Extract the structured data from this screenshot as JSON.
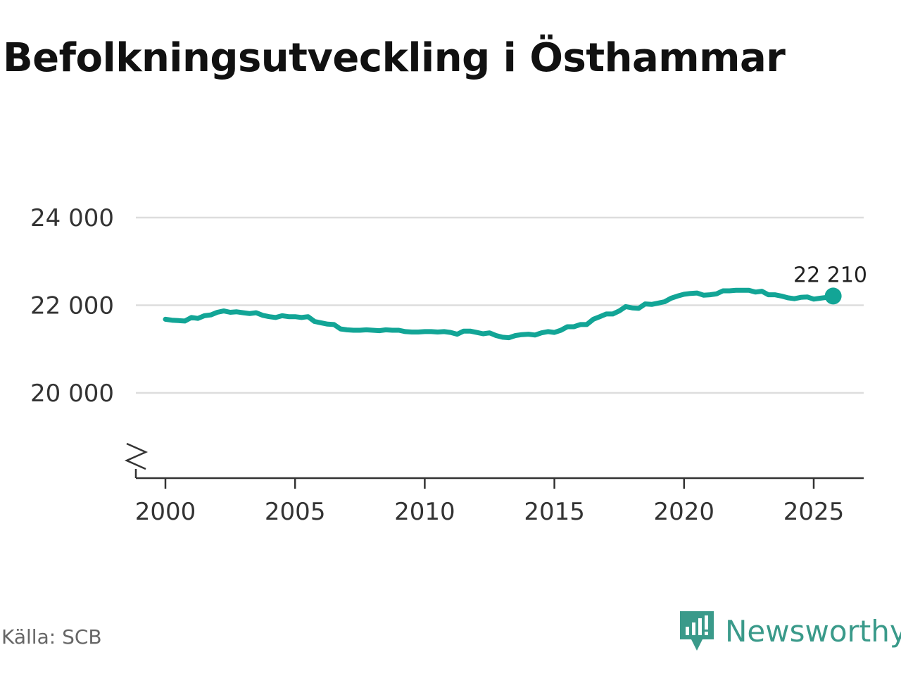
{
  "chart_data": {
    "type": "line",
    "title": "Befolkningsutveckling i Östhammar",
    "xlabel": "",
    "ylabel": "",
    "ylim": [
      18000,
      25000
    ],
    "xlim": [
      1999,
      2027
    ],
    "y_ticks": [
      20000,
      22000,
      24000
    ],
    "y_tick_labels": [
      "20 000",
      "22 000",
      "24 000"
    ],
    "x_ticks": [
      2000,
      2005,
      2010,
      2015,
      2020,
      2025
    ],
    "x_tick_labels": [
      "2000",
      "2005",
      "2010",
      "2015",
      "2020",
      "2025"
    ],
    "grid": true,
    "axis_break": true,
    "line_color": "#12a596",
    "series": [
      {
        "x": [
          2000.0,
          2000.25,
          2000.5,
          2000.75,
          2001.0,
          2001.25,
          2001.5,
          2001.75,
          2002.0,
          2002.25,
          2002.5,
          2002.75,
          2003.0,
          2003.25,
          2003.5,
          2003.75,
          2004.0,
          2004.25,
          2004.5,
          2004.75,
          2005.0,
          2005.25,
          2005.5,
          2005.75,
          2006.0,
          2006.25,
          2006.5,
          2006.75,
          2007.0,
          2007.25,
          2007.5,
          2007.75,
          2008.0,
          2008.25,
          2008.5,
          2008.75,
          2009.0,
          2009.25,
          2009.5,
          2009.75,
          2010.0,
          2010.25,
          2010.5,
          2010.75,
          2011.0,
          2011.25,
          2011.5,
          2011.75,
          2012.0,
          2012.25,
          2012.5,
          2012.75,
          2013.0,
          2013.25,
          2013.5,
          2013.75,
          2014.0,
          2014.25,
          2014.5,
          2014.75,
          2015.0,
          2015.25,
          2015.5,
          2015.75,
          2016.0,
          2016.25,
          2016.5,
          2016.75,
          2017.0,
          2017.25,
          2017.5,
          2017.75,
          2018.0,
          2018.25,
          2018.5,
          2018.75,
          2019.0,
          2019.25,
          2019.5,
          2019.75,
          2020.0,
          2020.25,
          2020.5,
          2020.75,
          2021.0,
          2021.25,
          2021.5,
          2021.75,
          2022.0,
          2022.25,
          2022.5,
          2022.75,
          2023.0,
          2023.25,
          2023.5,
          2023.75,
          2024.0,
          2024.25,
          2024.5,
          2024.75,
          2025.0,
          2025.25,
          2025.5,
          2025.75
        ],
        "values": [
          21680,
          21660,
          21650,
          21640,
          21720,
          21700,
          21760,
          21780,
          21840,
          21870,
          21840,
          21850,
          21830,
          21810,
          21830,
          21770,
          21740,
          21720,
          21760,
          21740,
          21740,
          21720,
          21740,
          21630,
          21600,
          21570,
          21560,
          21460,
          21440,
          21430,
          21430,
          21440,
          21430,
          21420,
          21440,
          21430,
          21430,
          21400,
          21390,
          21390,
          21400,
          21400,
          21390,
          21400,
          21380,
          21340,
          21410,
          21410,
          21380,
          21350,
          21370,
          21310,
          21270,
          21260,
          21310,
          21330,
          21340,
          21320,
          21370,
          21400,
          21380,
          21430,
          21510,
          21510,
          21560,
          21560,
          21680,
          21740,
          21800,
          21800,
          21870,
          21970,
          21940,
          21930,
          22030,
          22020,
          22050,
          22080,
          22160,
          22210,
          22250,
          22270,
          22280,
          22230,
          22240,
          22260,
          22330,
          22330,
          22340,
          22340,
          22340,
          22300,
          22320,
          22240,
          22240,
          22210,
          22170,
          22150,
          22180,
          22190,
          22140,
          22160,
          22180,
          22210
        ]
      }
    ],
    "end_label": "22 210"
  },
  "page": {
    "source": "Källa: SCB",
    "brand": "Newsworthy",
    "brand_icon": "newsworthy-logo-icon",
    "brand_color": "#3a9a8a"
  }
}
